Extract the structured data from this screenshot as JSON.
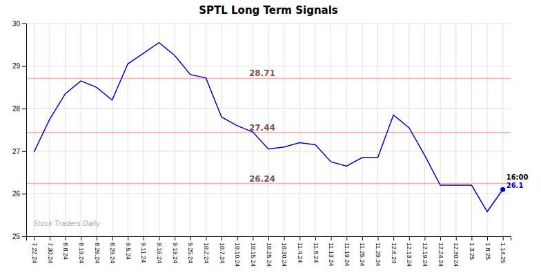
{
  "chart_data": {
    "type": "line",
    "title": "SPTL Long Term Signals",
    "categories": [
      "7.22.24",
      "7.30.24",
      "8.8.24",
      "8.19.24",
      "8.26.24",
      "8.29.24",
      "9.5.24",
      "9.11.24",
      "9.16.24",
      "9.19.24",
      "9.25.24",
      "10.2.24",
      "10.7.24",
      "10.10.24",
      "10.15.24",
      "10.25.24",
      "10.30.24",
      "11.4.24",
      "11.8.24",
      "11.13.24",
      "11.19.24",
      "11.25.24",
      "11.29.24",
      "12.6.24",
      "12.13.24",
      "12.19.24",
      "12.24.24",
      "12.30.24",
      "1.3.25",
      "1.8.25",
      "1.14.25"
    ],
    "values": [
      26.98,
      27.75,
      28.35,
      28.65,
      28.5,
      28.2,
      29.05,
      29.3,
      29.55,
      29.25,
      28.8,
      28.72,
      27.8,
      27.6,
      27.45,
      27.05,
      27.1,
      27.2,
      27.15,
      26.75,
      26.65,
      26.85,
      26.85,
      27.85,
      27.55,
      26.9,
      26.2,
      26.2,
      26.2,
      25.58,
      26.1
    ],
    "color": "#0000cc",
    "hlines": {
      "values": [
        28.71,
        27.44,
        26.24
      ],
      "color": "#ffaaaa"
    },
    "annotations": {
      "last_time": "16:00",
      "last_value": "26.1",
      "watermark": "Stock Traders Daily"
    },
    "ylim": [
      25.0,
      30.0
    ],
    "yticks": [
      25,
      26,
      27,
      28,
      29,
      30
    ],
    "grid": true
  }
}
